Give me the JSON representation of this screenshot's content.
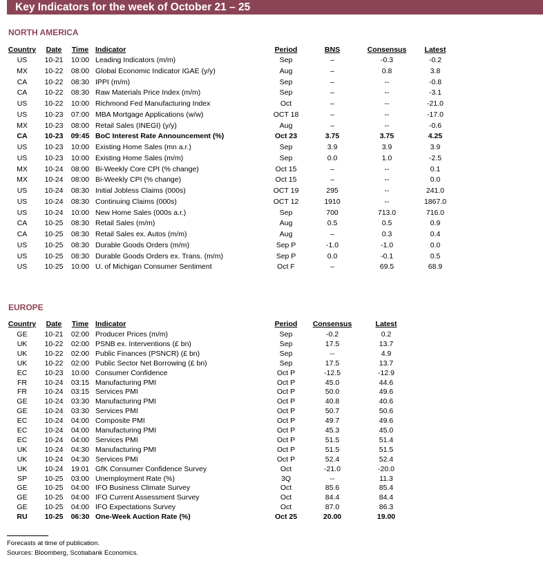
{
  "title": "Key Indicators for the week of October 21 – 25",
  "north_america": {
    "heading": "NORTH AMERICA",
    "columns": [
      "Country",
      "Date",
      "Time",
      "Indicator",
      "Period",
      "BNS",
      "Consensus",
      "Latest"
    ],
    "rows": [
      [
        "US",
        "10-21",
        "10:00",
        "Leading Indicators (m/m)",
        "Sep",
        "–",
        "-0.3",
        "-0.2"
      ],
      [
        "MX",
        "10-22",
        "08:00",
        "Global Economic Indicator IGAE (y/y)",
        "Aug",
        "–",
        "0.8",
        "3.8"
      ],
      [
        "CA",
        "10-22",
        "08:30",
        "IPPI (m/m)",
        "Sep",
        "–",
        "--",
        "-0.8"
      ],
      [
        "CA",
        "10-22",
        "08:30",
        "Raw Materials Price Index (m/m)",
        "Sep",
        "–",
        "--",
        "-3.1"
      ],
      [
        "US",
        "10-22",
        "10:00",
        "Richmond Fed Manufacturing Index",
        "Oct",
        "–",
        "--",
        "-21.0"
      ],
      [
        "US",
        "10-23",
        "07:00",
        "MBA Mortgage Applications (w/w)",
        "OCT 18",
        "–",
        "--",
        "-17.0"
      ],
      [
        "MX",
        "10-23",
        "08:00",
        "Retail Sales (INEGI) (y/y)",
        "Aug",
        "–",
        "--",
        "-0.6"
      ],
      [
        "CA",
        "10-23",
        "09:45",
        "BoC Interest Rate Announcement (%)",
        "Oct 23",
        "3.75",
        "3.75",
        "4.25"
      ],
      [
        "US",
        "10-23",
        "10:00",
        "Existing Home Sales (mn a.r.)",
        "Sep",
        "3.9",
        "3.9",
        "3.9"
      ],
      [
        "US",
        "10-23",
        "10:00",
        "Existing Home Sales (m/m)",
        "Sep",
        "0.0",
        "1.0",
        "-2.5"
      ],
      [
        "MX",
        "10-24",
        "08:00",
        "Bi-Weekly Core CPI (% change)",
        "Oct 15",
        "–",
        "--",
        "0.1"
      ],
      [
        "MX",
        "10-24",
        "08:00",
        "Bi-Weekly CPI (% change)",
        "Oct 15",
        "–",
        "--",
        "0.0"
      ],
      [
        "US",
        "10-24",
        "08:30",
        "Initial Jobless Claims (000s)",
        "OCT 19",
        "295",
        "--",
        "241.0"
      ],
      [
        "US",
        "10-24",
        "08:30",
        "Continuing Claims (000s)",
        "OCT 12",
        "1910",
        "--",
        "1867.0"
      ],
      [
        "US",
        "10-24",
        "10:00",
        "New Home Sales (000s a.r.)",
        "Sep",
        "700",
        "713.0",
        "716.0"
      ],
      [
        "CA",
        "10-25",
        "08:30",
        "Retail Sales (m/m)",
        "Aug",
        "0.5",
        "0.5",
        "0.9"
      ],
      [
        "CA",
        "10-25",
        "08:30",
        "Retail Sales ex. Autos (m/m)",
        "Aug",
        "–",
        "0.3",
        "0.4"
      ],
      [
        "US",
        "10-25",
        "08:30",
        "Durable Goods Orders (m/m)",
        "Sep P",
        "-1.0",
        "-1.0",
        "0.0"
      ],
      [
        "US",
        "10-25",
        "08:30",
        "Durable Goods Orders ex. Trans. (m/m)",
        "Sep P",
        "0.0",
        "-0.1",
        "0.5"
      ],
      [
        "US",
        "10-25",
        "10:00",
        "U. of Michigan Consumer Sentiment",
        "Oct F",
        "–",
        "69.5",
        "68.9"
      ]
    ],
    "bold_rows": [
      7
    ]
  },
  "europe": {
    "heading": "EUROPE",
    "columns": [
      "Country",
      "Date",
      "Time",
      "Indicator",
      "Period",
      "Consensus",
      "Latest"
    ],
    "rows": [
      [
        "GE",
        "10-21",
        "02:00",
        "Producer Prices (m/m)",
        "Sep",
        "-0.2",
        "0.2"
      ],
      [
        "UK",
        "10-22",
        "02:00",
        "PSNB ex. Interventions (£ bn)",
        "Sep",
        "17.5",
        "13.7"
      ],
      [
        "UK",
        "10-22",
        "02:00",
        "Public Finances (PSNCR) (£ bn)",
        "Sep",
        "--",
        "4.9"
      ],
      [
        "UK",
        "10-22",
        "02:00",
        "Public Sector Net Borrowing (£ bn)",
        "Sep",
        "17.5",
        "13.7"
      ],
      [
        "EC",
        "10-23",
        "10:00",
        "Consumer Confidence",
        "Oct P",
        "-12.5",
        "-12.9"
      ],
      [
        "FR",
        "10-24",
        "03:15",
        "Manufacturing PMI",
        "Oct P",
        "45.0",
        "44.6"
      ],
      [
        "FR",
        "10-24",
        "03:15",
        "Services PMI",
        "Oct P",
        "50.0",
        "49.6"
      ],
      [
        "GE",
        "10-24",
        "03:30",
        "Manufacturing PMI",
        "Oct P",
        "40.8",
        "40.6"
      ],
      [
        "GE",
        "10-24",
        "03:30",
        "Services PMI",
        "Oct P",
        "50.7",
        "50.6"
      ],
      [
        "EC",
        "10-24",
        "04:00",
        "Composite PMI",
        "Oct P",
        "49.7",
        "49.6"
      ],
      [
        "EC",
        "10-24",
        "04:00",
        "Manufacturing PMI",
        "Oct P",
        "45.3",
        "45.0"
      ],
      [
        "EC",
        "10-24",
        "04:00",
        "Services PMI",
        "Oct P",
        "51.5",
        "51.4"
      ],
      [
        "UK",
        "10-24",
        "04:30",
        "Manufacturing PMI",
        "Oct P",
        "51.5",
        "51.5"
      ],
      [
        "UK",
        "10-24",
        "04:30",
        "Services PMI",
        "Oct P",
        "52.4",
        "52.4"
      ],
      [
        "UK",
        "10-24",
        "19:01",
        "GfK Consumer Confidence Survey",
        "Oct",
        "-21.0",
        "-20.0"
      ],
      [
        "SP",
        "10-25",
        "03:00",
        "Unemployment Rate (%)",
        "3Q",
        "--",
        "11.3"
      ],
      [
        "GE",
        "10-25",
        "04:00",
        "IFO Business Climate Survey",
        "Oct",
        "85.6",
        "85.4"
      ],
      [
        "GE",
        "10-25",
        "04:00",
        "IFO Current Assessment Survey",
        "Oct",
        "84.4",
        "84.4"
      ],
      [
        "GE",
        "10-25",
        "04:00",
        "IFO Expectations Survey",
        "Oct",
        "87.0",
        "86.3"
      ],
      [
        "RU",
        "10-25",
        "06:30",
        "One-Week Auction Rate (%)",
        "Oct 25",
        "20.00",
        "19.00"
      ]
    ],
    "bold_rows": [
      19
    ]
  },
  "footnotes": [
    "Forecasts at time of publication.",
    "Sources: Bloomberg, Scotiabank Economics."
  ],
  "colors": {
    "accent": "#8b4455"
  }
}
